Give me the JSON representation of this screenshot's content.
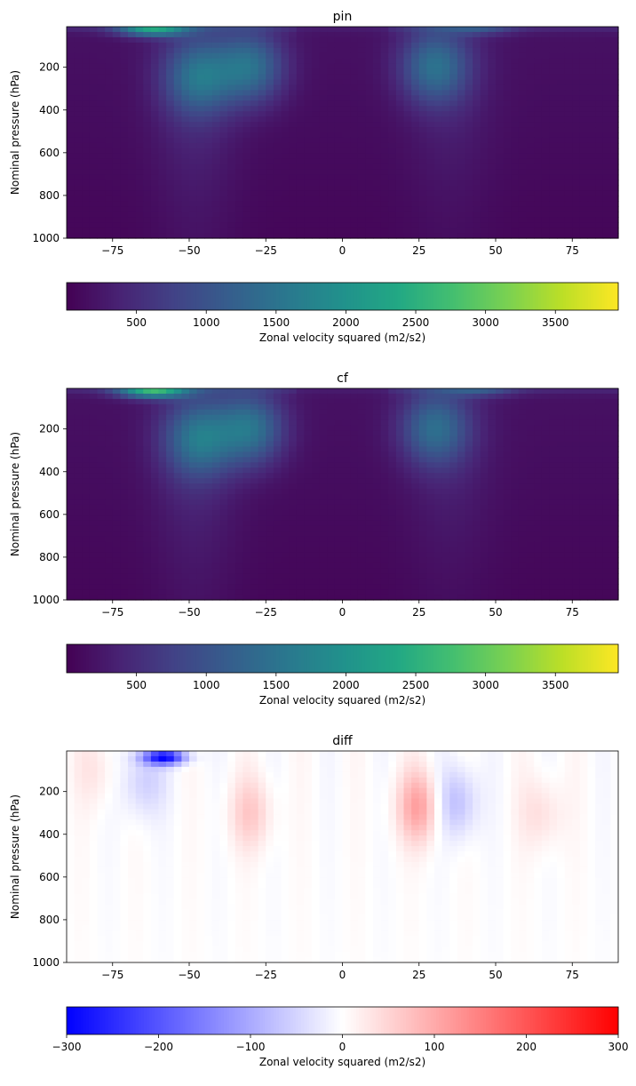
{
  "chart_data": [
    {
      "type": "heatmap",
      "title": "pin",
      "ylabel": "Nominal pressure (hPa)",
      "xlabel": "",
      "xlim": [
        -90,
        90
      ],
      "ylim": [
        1000,
        10
      ],
      "x_ticks": [
        -75,
        -50,
        -25,
        0,
        25,
        50,
        75
      ],
      "y_ticks": [
        200,
        400,
        600,
        800,
        1000
      ],
      "colormap": "viridis",
      "colorbar": {
        "label": "Zonal velocity squared (m2/s2)",
        "range": [
          0,
          3950
        ],
        "ticks": [
          500,
          1000,
          1500,
          2000,
          2500,
          3000,
          3500
        ],
        "orientation": "horizontal"
      },
      "features": [
        {
          "lat": -62,
          "p": 20,
          "value": 1900
        },
        {
          "lat": -47,
          "p": 250,
          "value": 1100
        },
        {
          "lat": -30,
          "p": 200,
          "value": 1250
        },
        {
          "lat": 30,
          "p": 200,
          "value": 1150
        },
        {
          "lat": 45,
          "p": 15,
          "value": 600
        }
      ]
    },
    {
      "type": "heatmap",
      "title": "cf",
      "ylabel": "Nominal pressure (hPa)",
      "xlabel": "",
      "xlim": [
        -90,
        90
      ],
      "ylim": [
        1000,
        10
      ],
      "x_ticks": [
        -75,
        -50,
        -25,
        0,
        25,
        50,
        75
      ],
      "y_ticks": [
        200,
        400,
        600,
        800,
        1000
      ],
      "colormap": "viridis",
      "colorbar": {
        "label": "Zonal velocity squared (m2/s2)",
        "range": [
          0,
          3950
        ],
        "ticks": [
          500,
          1000,
          1500,
          2000,
          2500,
          3000,
          3500
        ],
        "orientation": "horizontal"
      },
      "features": [
        {
          "lat": -62,
          "p": 20,
          "value": 2200
        },
        {
          "lat": -47,
          "p": 250,
          "value": 1150
        },
        {
          "lat": -30,
          "p": 200,
          "value": 1300
        },
        {
          "lat": 30,
          "p": 200,
          "value": 1100
        },
        {
          "lat": 45,
          "p": 15,
          "value": 650
        }
      ]
    },
    {
      "type": "heatmap",
      "title": "diff",
      "ylabel": "Nominal pressure (hPa)",
      "xlabel": "",
      "xlim": [
        -90,
        90
      ],
      "ylim": [
        1000,
        10
      ],
      "x_ticks": [
        -75,
        -50,
        -25,
        0,
        25,
        50,
        75
      ],
      "y_ticks": [
        200,
        400,
        600,
        800,
        1000
      ],
      "colormap": "bwr",
      "colorbar": {
        "label": "Zonal velocity squared (m2/s2)",
        "range": [
          -300,
          300
        ],
        "ticks": [
          -300,
          -200,
          -100,
          0,
          100,
          200,
          300
        ],
        "orientation": "horizontal"
      },
      "features": [
        {
          "lat": -58,
          "p": 40,
          "value": -280
        },
        {
          "lat": -65,
          "p": 150,
          "value": -60
        },
        {
          "lat": -30,
          "p": 300,
          "value": 60
        },
        {
          "lat": 25,
          "p": 270,
          "value": 110
        },
        {
          "lat": 37,
          "p": 250,
          "value": -80
        },
        {
          "lat": 65,
          "p": 300,
          "value": 40
        },
        {
          "lat": -80,
          "p": 100,
          "value": 30
        }
      ]
    }
  ]
}
